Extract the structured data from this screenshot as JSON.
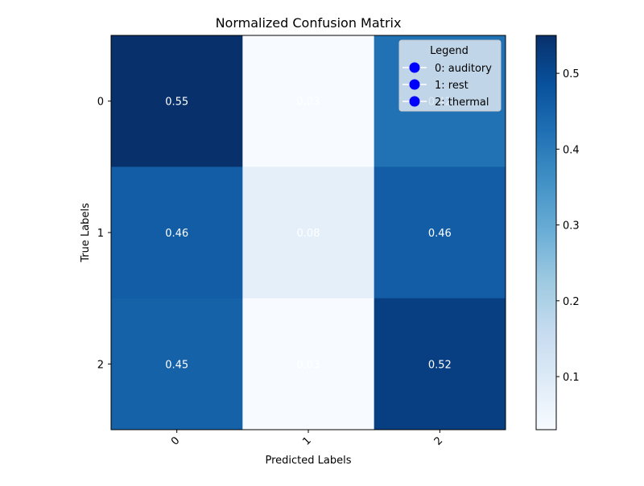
{
  "chart_data": {
    "type": "heatmap",
    "title": "Normalized Confusion Matrix",
    "xlabel": "Predicted Labels",
    "ylabel": "True Labels",
    "x_categories": [
      "0",
      "1",
      "2"
    ],
    "y_categories": [
      "0",
      "1",
      "2"
    ],
    "values": [
      [
        0.55,
        0.03,
        0.42
      ],
      [
        0.46,
        0.08,
        0.46
      ],
      [
        0.45,
        0.03,
        0.52
      ]
    ],
    "cell_labels": [
      [
        "0.55",
        "0.03",
        "0.42"
      ],
      [
        "0.46",
        "0.08",
        "0.46"
      ],
      [
        "0.45",
        "0.03",
        "0.52"
      ]
    ],
    "colormap": "Blues",
    "color_range": [
      0.03,
      0.55
    ],
    "colorbar_ticks": [
      "0.1",
      "0.2",
      "0.3",
      "0.4",
      "0.5"
    ],
    "colorbar_tick_values": [
      0.1,
      0.2,
      0.3,
      0.4,
      0.5
    ],
    "x_tick_rotation_deg": 45,
    "legend": {
      "title": "Legend",
      "placement": "top-right",
      "marker_color": "#0000ff",
      "entries": [
        "0: auditory",
        "1: rest",
        "2: thermal"
      ]
    },
    "grid": false
  }
}
